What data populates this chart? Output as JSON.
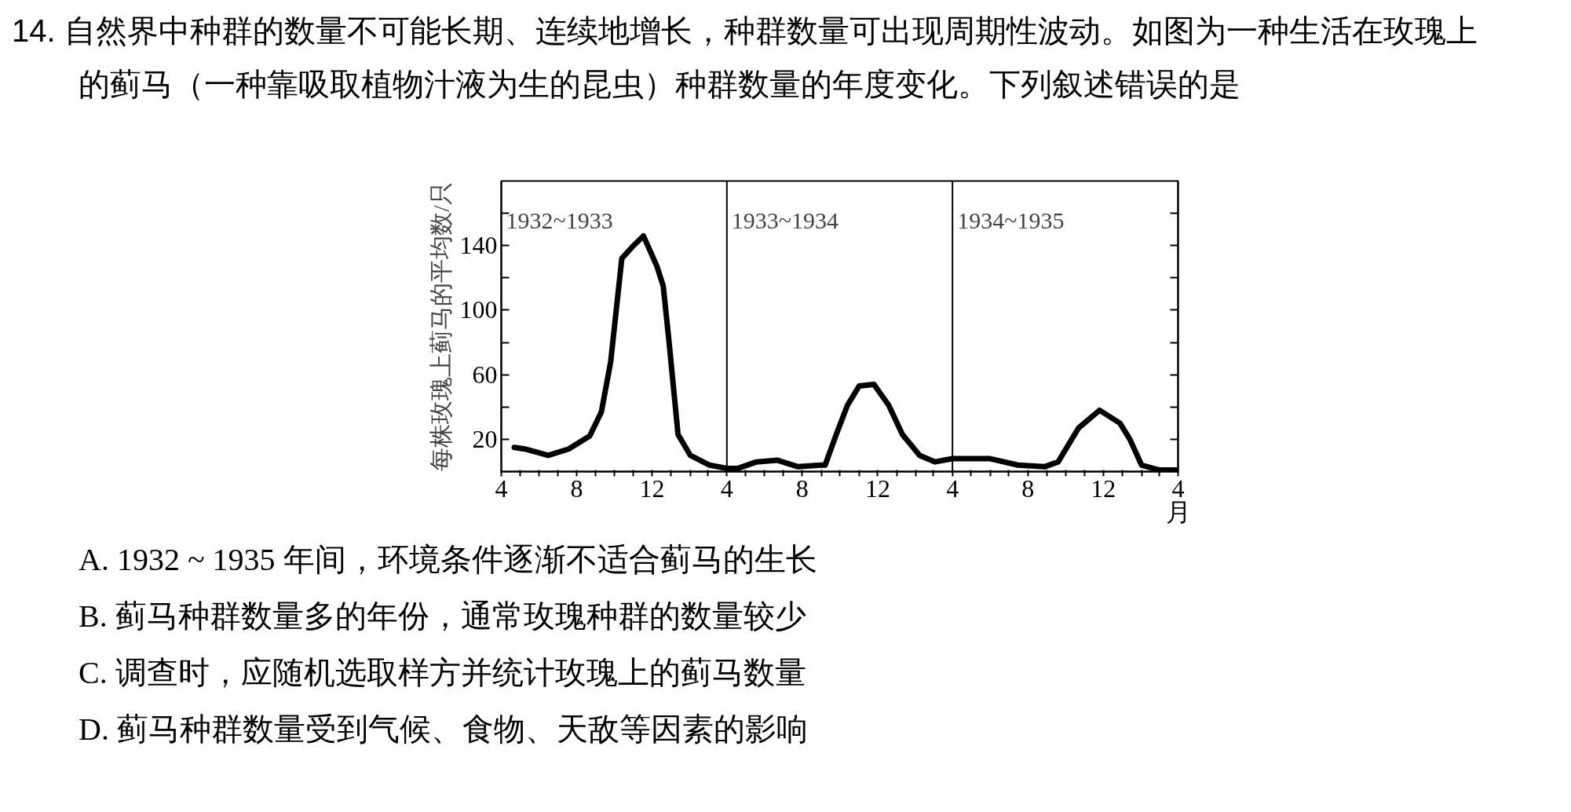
{
  "chart_data": {
    "type": "line",
    "title": "14. 自然界中种群的数量不可能长期、连续地增长，种群数量可出现周期性波动。如图为一种生活在玫瑰上的蓟马（一种靠吸取植物汁液为生的昆虫）种群数量的年度变化。下列叙述错误的是",
    "xlabel": "月",
    "ylabel": "每株玫瑰上蓟马的平均数/只",
    "series": [
      {
        "color": "#000000",
        "x": [
          "1932-04-22",
          "1932-05-09",
          "1932-06-16",
          "1932-07-19",
          "1932-08-22",
          "1932-09-10",
          "1932-09-25",
          "1932-10-13",
          "1932-11-01",
          "1932-11-17",
          "1932-12-09",
          "1932-12-19",
          "1932-12-28",
          "1933-01-12",
          "1933-02-01",
          "1933-03-04",
          "1933-04-01",
          "1933-04-19",
          "1933-05-19",
          "1933-06-22",
          "1933-07-25",
          "1933-09-01",
          "1933-09-07",
          "1933-09-25",
          "1933-10-13",
          "1933-11-01",
          "1933-11-25",
          "1933-12-19",
          "1934-01-10",
          "1934-02-07",
          "1934-03-04",
          "1934-04-01",
          "1934-06-01",
          "1934-07-16",
          "1934-08-28",
          "1934-09-19",
          "1934-10-22",
          "1934-11-25",
          "1934-12-28",
          "1935-01-13",
          "1935-02-01",
          "1935-03-01",
          "1935-04-01"
        ],
        "values": [
          15,
          14,
          10,
          14,
          22,
          37,
          68,
          132,
          140,
          146,
          127,
          115,
          82,
          23,
          10,
          4,
          2,
          2,
          6,
          7,
          3,
          4,
          4,
          23,
          41,
          53,
          54,
          41,
          23,
          10,
          6,
          8,
          8,
          4,
          3,
          6,
          27,
          38,
          30,
          20,
          4,
          1,
          1
        ]
      }
    ],
    "xlim": [
      "1932-04-01",
      "1935-04-01"
    ],
    "ylim": [
      0,
      180
    ],
    "xticks": [
      {
        "value": "1932-04",
        "label": "4"
      },
      {
        "value": "1932-05",
        "label": null
      },
      {
        "value": "1932-06",
        "label": null
      },
      {
        "value": "1932-07",
        "label": null
      },
      {
        "value": "1932-08",
        "label": "8"
      },
      {
        "value": "1932-09",
        "label": null
      },
      {
        "value": "1932-10",
        "label": null
      },
      {
        "value": "1932-11",
        "label": null
      },
      {
        "value": "1932-12",
        "label": "12"
      },
      {
        "value": "1933-01",
        "label": null
      },
      {
        "value": "1933-02",
        "label": null
      },
      {
        "value": "1933-03",
        "label": null
      },
      {
        "value": "1933-04",
        "label": "4"
      },
      {
        "value": "1933-05",
        "label": null
      },
      {
        "value": "1933-06",
        "label": null
      },
      {
        "value": "1933-07",
        "label": null
      },
      {
        "value": "1933-08",
        "label": "8"
      },
      {
        "value": "1933-09",
        "label": null
      },
      {
        "value": "1933-10",
        "label": null
      },
      {
        "value": "1933-11",
        "label": null
      },
      {
        "value": "1933-12",
        "label": "12"
      },
      {
        "value": "1934-01",
        "label": null
      },
      {
        "value": "1934-02",
        "label": null
      },
      {
        "value": "1934-03",
        "label": null
      },
      {
        "value": "1934-04",
        "label": "4"
      },
      {
        "value": "1934-05",
        "label": null
      },
      {
        "value": "1934-06",
        "label": null
      },
      {
        "value": "1934-07",
        "label": null
      },
      {
        "value": "1934-08",
        "label": "8"
      },
      {
        "value": "1934-09",
        "label": null
      },
      {
        "value": "1934-10",
        "label": null
      },
      {
        "value": "1934-11",
        "label": null
      },
      {
        "value": "1934-12",
        "label": "12"
      },
      {
        "value": "1935-01",
        "label": null
      },
      {
        "value": "1935-02",
        "label": null
      },
      {
        "value": "1935-03",
        "label": null
      },
      {
        "value": "1935-04",
        "label": "4"
      }
    ],
    "yticks": [
      20,
      {
        "value": 40,
        "label": null
      },
      60,
      {
        "value": 80,
        "label": null
      },
      100,
      {
        "value": 120,
        "label": null
      },
      140,
      {
        "value": 160,
        "label": null
      }
    ],
    "ref_lines": [
      {
        "axis": "x",
        "value": "1933-04-01",
        "color": "#000000"
      },
      {
        "axis": "x",
        "value": "1934-04-01",
        "color": "#000000"
      }
    ],
    "annotations": [
      "1932~1933",
      "1933~1934",
      "1934~1935",
      "A. 1932 ~ 1935 年间，环境条件逐渐不适合蓟马的生长",
      "B. 蓟马种群数量多的年份，通常玫瑰种群的数量较少",
      "C. 调查时，应随机选取样方并统计玫瑰上的蓟马数量",
      "D. 蓟马种群数量受到气候、食物、天敌等因素的影响"
    ],
    "grid": false,
    "marker": "none",
    "line_style": "solid"
  }
}
